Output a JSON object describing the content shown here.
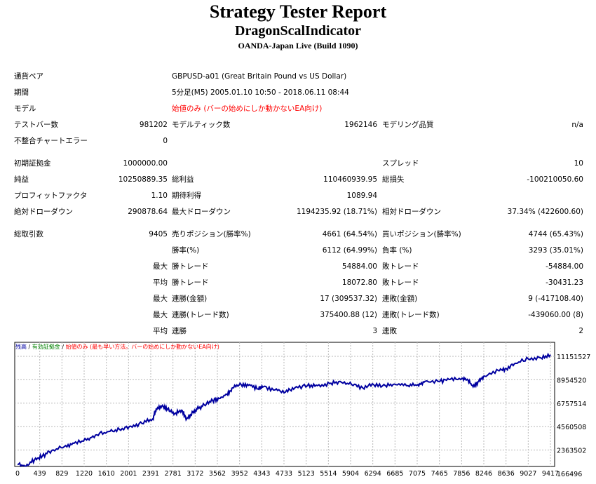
{
  "header": {
    "title": "Strategy Tester Report",
    "subtitle": "DragonScalIndicator",
    "server": "OANDA-Japan Live (Build 1090)"
  },
  "info": {
    "symbol_label": "通貨ペア",
    "symbol_value": "GBPUSD-a01 (Great Britain Pound vs US Dollar)",
    "period_label": "期間",
    "period_value": "5分足(M5) 2005.01.10 10:50 - 2018.06.11 08:44",
    "model_label": "モデル",
    "model_value": "始値のみ (バーの始めにしか動かないEA向け)",
    "bars_label": "テストバー数",
    "bars_value": "981202",
    "ticks_label": "モデルティック数",
    "ticks_value": "1962146",
    "quality_label": "モデリング品質",
    "quality_value": "n/a",
    "mismatch_label": "不整合チャートエラー",
    "mismatch_value": "0"
  },
  "stats": {
    "deposit_label": "初期証拠金",
    "deposit_value": "1000000.00",
    "spread_label": "スプレッド",
    "spread_value": "10",
    "net_label": "純益",
    "net_value": "10250889.35",
    "gross_profit_label": "総利益",
    "gross_profit_value": "110460939.95",
    "gross_loss_label": "総損失",
    "gross_loss_value": "-100210050.60",
    "pf_label": "プロフィットファクタ",
    "pf_value": "1.10",
    "expected_label": "期待利得",
    "expected_value": "1089.94",
    "abs_dd_label": "絶対ドローダウン",
    "abs_dd_value": "290878.64",
    "max_dd_label": "最大ドローダウン",
    "max_dd_value": "1194235.92 (18.71%)",
    "rel_dd_label": "相対ドローダウン",
    "rel_dd_value": "37.34% (422600.60)"
  },
  "trades": {
    "total_label": "総取引数",
    "total_value": "9405",
    "short_label": "売りポジション(勝率%)",
    "short_value": "4661 (64.54%)",
    "long_label": "買いポジション(勝率%)",
    "long_value": "4744 (65.43%)",
    "win_label": "勝率(%)",
    "win_value": "6112 (64.99%)",
    "loss_label": "負率 (%)",
    "loss_value": "3293 (35.01%)",
    "q_max": "最大",
    "q_avg": "平均",
    "largest_win_label": "勝トレード",
    "largest_win_value": "54884.00",
    "largest_loss_label": "敗トレード",
    "largest_loss_value": "-54884.00",
    "avg_win_label": "勝トレード",
    "avg_win_value": "18072.80",
    "avg_loss_label": "敗トレード",
    "avg_loss_value": "-30431.23",
    "cons_wins_label": "連勝(金額)",
    "cons_wins_value": "17 (309537.32)",
    "cons_losses_label": "連敗(金額)",
    "cons_losses_value": "9 (-417108.40)",
    "cons_profit_label": "連勝(トレード数)",
    "cons_profit_value": "375400.88 (12)",
    "cons_loss_label": "連敗(トレード数)",
    "cons_loss_value": "-439060.00 (8)",
    "avg_cons_wins_label": "連勝",
    "avg_cons_wins_value": "3",
    "avg_cons_losses_label": "連敗",
    "avg_cons_losses_value": "2"
  },
  "chart_data": {
    "type": "line",
    "legend": {
      "balance": "残高",
      "sep": " / ",
      "equity": "有効証拠金",
      "model": "始値のみ (最も早い方法。バーの始めにしか動かないEA向け)"
    },
    "x_ticks": [
      "0",
      "439",
      "829",
      "1220",
      "1610",
      "2001",
      "2391",
      "2781",
      "3172",
      "3562",
      "3952",
      "4343",
      "4733",
      "5123",
      "5514",
      "5904",
      "6294",
      "6685",
      "7075",
      "7465",
      "7856",
      "8246",
      "8636",
      "9027",
      "9417"
    ],
    "y_ticks": [
      "11151527",
      "8954520",
      "6757514",
      "4560508",
      "2363502",
      "166496"
    ],
    "xlim": [
      0,
      9417
    ],
    "ylim": [
      166496,
      11151527
    ],
    "grid": true,
    "line_color": "#0000a0",
    "series": [
      {
        "values": [
          [
            0,
            1000000
          ],
          [
            150,
            860000
          ],
          [
            300,
            1450000
          ],
          [
            439,
            1800000
          ],
          [
            600,
            2300000
          ],
          [
            829,
            2700000
          ],
          [
            1000,
            3000000
          ],
          [
            1220,
            3300000
          ],
          [
            1400,
            3800000
          ],
          [
            1610,
            4100000
          ],
          [
            1800,
            4300000
          ],
          [
            2001,
            4600000
          ],
          [
            2200,
            4850000
          ],
          [
            2391,
            5300000
          ],
          [
            2450,
            6200000
          ],
          [
            2550,
            6500000
          ],
          [
            2650,
            6200000
          ],
          [
            2781,
            5800000
          ],
          [
            2900,
            6100000
          ],
          [
            2990,
            5300000
          ],
          [
            3100,
            5900000
          ],
          [
            3172,
            6200000
          ],
          [
            3300,
            6600000
          ],
          [
            3450,
            7000000
          ],
          [
            3562,
            7200000
          ],
          [
            3700,
            7600000
          ],
          [
            3800,
            8200000
          ],
          [
            3952,
            8500000
          ],
          [
            4100,
            8500000
          ],
          [
            4250,
            8100000
          ],
          [
            4343,
            8300000
          ],
          [
            4550,
            8000000
          ],
          [
            4733,
            7800000
          ],
          [
            4900,
            8200000
          ],
          [
            5123,
            8400000
          ],
          [
            5300,
            8400000
          ],
          [
            5514,
            8600000
          ],
          [
            5700,
            8800000
          ],
          [
            5904,
            8500000
          ],
          [
            6100,
            8200000
          ],
          [
            6294,
            8500000
          ],
          [
            6500,
            8400000
          ],
          [
            6685,
            8500000
          ],
          [
            6900,
            8400000
          ],
          [
            7075,
            8500000
          ],
          [
            7200,
            8800000
          ],
          [
            7465,
            8800000
          ],
          [
            7650,
            9000000
          ],
          [
            7856,
            9100000
          ],
          [
            7950,
            9000000
          ],
          [
            8050,
            8300000
          ],
          [
            8150,
            8800000
          ],
          [
            8246,
            9300000
          ],
          [
            8500,
            9800000
          ],
          [
            8636,
            10000000
          ],
          [
            8800,
            10500000
          ],
          [
            9027,
            10900000
          ],
          [
            9250,
            11000000
          ],
          [
            9417,
            11300000
          ]
        ]
      }
    ]
  }
}
